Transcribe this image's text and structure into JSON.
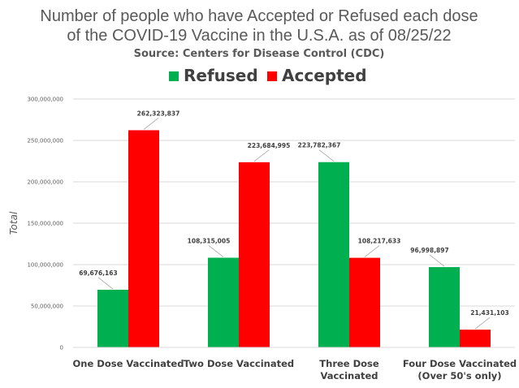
{
  "chart_data": {
    "type": "bar",
    "title_lines": [
      "Number of people who have Accepted or Refused each dose",
      "of the COVID-19 Vaccine in the U.S.A. as of 08/25/22"
    ],
    "subtitle": "Source: Centers for Disease Control (CDC)",
    "ylabel": "Total",
    "xlabel": "",
    "ylim": [
      0,
      300000000
    ],
    "yticks": [
      0,
      50000000,
      100000000,
      150000000,
      200000000,
      250000000,
      300000000
    ],
    "ytick_labels": [
      "0",
      "50,000,000",
      "100,000,000",
      "150,000,000",
      "200,000,000",
      "250,000,000",
      "300,000,000"
    ],
    "grid": true,
    "legend_position": "top",
    "categories": [
      [
        "One Dose Vaccinated"
      ],
      [
        "Two Dose Vaccinated"
      ],
      [
        "Three Dose",
        "Vaccinated"
      ],
      [
        "Four Dose Vaccinated",
        "(Over 50's only)"
      ]
    ],
    "series": [
      {
        "name": "Refused",
        "color": "#00b050",
        "values": [
          69676163,
          108315005,
          223782367,
          96998897
        ],
        "labels": [
          "69,676,163",
          "108,315,005",
          "223,782,367",
          "96,998,897"
        ]
      },
      {
        "name": "Accepted",
        "color": "#ff0000",
        "values": [
          262323837,
          223684995,
          108217633,
          21431103
        ],
        "labels": [
          "262,323,837",
          "223,684,995",
          "108,217,633",
          "21,431,103"
        ]
      }
    ]
  }
}
